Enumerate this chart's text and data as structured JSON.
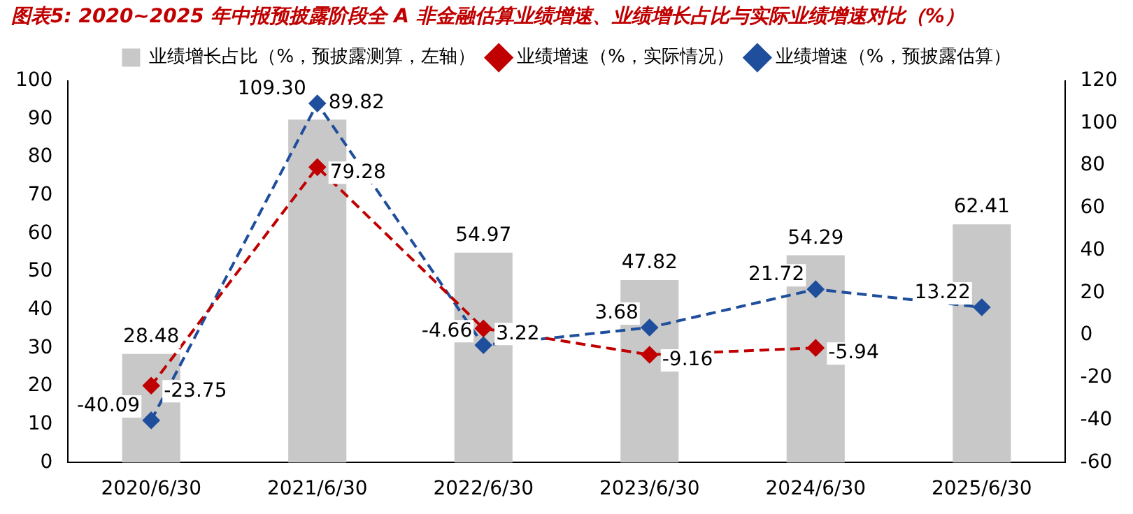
{
  "chart_data": {
    "type": "bar",
    "title": "图表5: 2020~2025 年中报预披露阶段全 A 非金融估算业绩增速、业绩增长占比与实际业绩增速对比（%）",
    "categories": [
      "2020/6/30",
      "2021/6/30",
      "2022/6/30",
      "2023/6/30",
      "2024/6/30",
      "2025/6/30"
    ],
    "series": [
      {
        "name": "业绩增长占比（%，预披露测算，左轴）",
        "color": "#c8c8c8",
        "values": [
          28.48,
          89.82,
          54.97,
          47.82,
          54.29,
          62.41
        ],
        "value_labels": [
          "28.48",
          "89.82",
          "54.97",
          "47.82",
          "54.29",
          "62.41"
        ]
      },
      {
        "name": "业绩增速（%，实际情况）",
        "type": "line",
        "axis": "y2",
        "color": "#c00000",
        "line_style": "dashed",
        "marker": "diamond",
        "values": [
          -23.75,
          79.28,
          3.22,
          -9.16,
          -5.94,
          null
        ],
        "value_labels": [
          "-23.75",
          "79.28",
          "3.22",
          "-9.16",
          "-5.94",
          null
        ]
      },
      {
        "name": "业绩增速（%，预披露估算）",
        "type": "line",
        "axis": "y2",
        "color": "#1f4e9c",
        "line_style": "dashed",
        "marker": "diamond",
        "values": [
          -40.09,
          109.3,
          -4.66,
          3.68,
          21.72,
          13.22
        ],
        "value_labels": [
          "-40.09",
          "109.30",
          "-4.66",
          "3.68",
          "21.72",
          "13.22"
        ]
      }
    ],
    "ylim": [
      0,
      100
    ],
    "yticks": [
      0,
      10,
      20,
      30,
      40,
      50,
      60,
      70,
      80,
      90,
      100
    ],
    "y2lim": [
      -60,
      120
    ],
    "y2ticks": [
      -60,
      -40,
      -20,
      0,
      20,
      40,
      60,
      80,
      100,
      120
    ],
    "grid": false,
    "legend": "top",
    "data_labels": true
  }
}
